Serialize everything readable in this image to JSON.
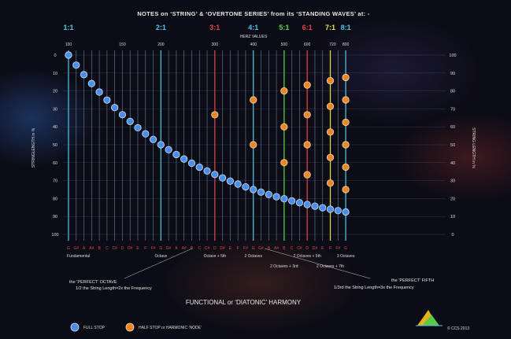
{
  "title": "NOTES on ‘STRING’ & ‘OVERTONE SERIES’ from its ‘STANDING WAVES’ at: -",
  "subtitle": "HERZ VALUES",
  "footer_title": "FUNCTIONAL or ‘DIATONIC’ HARMONY",
  "copyright": "© CCS 2013",
  "colors": {
    "grid": "#8fb0d8",
    "full_stop": "#4a8ee8",
    "half_stop": "#e8862a",
    "note_text": "#e04848"
  },
  "legend": {
    "full_stop": "FULL STOP",
    "half_stop": "HALF STOP or HARMONIC ‘NODE’"
  },
  "annotations": {
    "octave_line1": "the ‘PERFECT’ OCTAVE",
    "octave_line2": "1/2 the String Length=2x the Frequency",
    "fifth_line1": "the ‘PERFECT’ FIFTH",
    "fifth_line2": "1/3rd the String Length=3x the Frequency"
  },
  "chart_data": {
    "type": "scatter",
    "ylabel_left": "STRINGLENGTH in %",
    "ylabel_right": "STRING LENGTH in %",
    "hz_ticks": [
      100,
      150,
      200,
      300,
      400,
      500,
      600,
      720,
      800
    ],
    "y_left_ticks": [
      0,
      10,
      20,
      30,
      40,
      50,
      60,
      70,
      80,
      90,
      100
    ],
    "y_right_ticks": [
      100,
      90,
      80,
      70,
      60,
      50,
      40,
      30,
      20,
      10,
      0
    ],
    "ratios": [
      {
        "label": "1:1",
        "color": "#4cc8e8"
      },
      {
        "label": "2:1",
        "color": "#4cc8e8"
      },
      {
        "label": "3:1",
        "color": "#e04848"
      },
      {
        "label": "4:1",
        "color": "#4cc8e8"
      },
      {
        "label": "5:1",
        "color": "#5cd84a"
      },
      {
        "label": "6:1",
        "color": "#e04848"
      },
      {
        "label": "7:1",
        "color": "#e8e048"
      },
      {
        "label": "8:1",
        "color": "#4cc8e8"
      }
    ],
    "notes": [
      "G",
      "G#",
      "A",
      "A#",
      "B",
      "C",
      "C#",
      "D",
      "D#",
      "E",
      "F",
      "F#",
      "G",
      "G#",
      "A",
      "A#",
      "B",
      "C",
      "C#",
      "D",
      "D#",
      "E",
      "F",
      "F#",
      "G",
      "G#",
      "A",
      "A#",
      "B",
      "C",
      "C#",
      "D",
      "D#",
      "E",
      "F",
      "F#",
      "G"
    ],
    "interval_labels": [
      {
        "text": "Fundamental",
        "row": 1
      },
      {
        "text": "Octave",
        "row": 1
      },
      {
        "text": "Octave + 5th",
        "row": 1
      },
      {
        "text": "2 Octaves",
        "row": 1
      },
      {
        "text": "2 Octaves + 3rd",
        "row": 2
      },
      {
        "text": "2 Octaves + 5th",
        "row": 1
      },
      {
        "text": "2 Octaves + 7th",
        "row": 2
      },
      {
        "text": "3 Octaves",
        "row": 1
      }
    ],
    "half_stop_nodes": [
      {
        "ratio": "3:1",
        "y": [
          33.3
        ]
      },
      {
        "ratio": "4:1",
        "y": [
          25,
          50
        ]
      },
      {
        "ratio": "5:1",
        "y": [
          20,
          40,
          60
        ]
      },
      {
        "ratio": "6:1",
        "y": [
          16.7,
          33.3,
          50,
          66.7
        ]
      },
      {
        "ratio": "7:1",
        "y": [
          14.3,
          28.6,
          42.9,
          57.1,
          71.4
        ]
      },
      {
        "ratio": "8:1",
        "y": [
          12.5,
          25,
          37.5,
          50,
          62.5,
          75
        ]
      }
    ]
  }
}
